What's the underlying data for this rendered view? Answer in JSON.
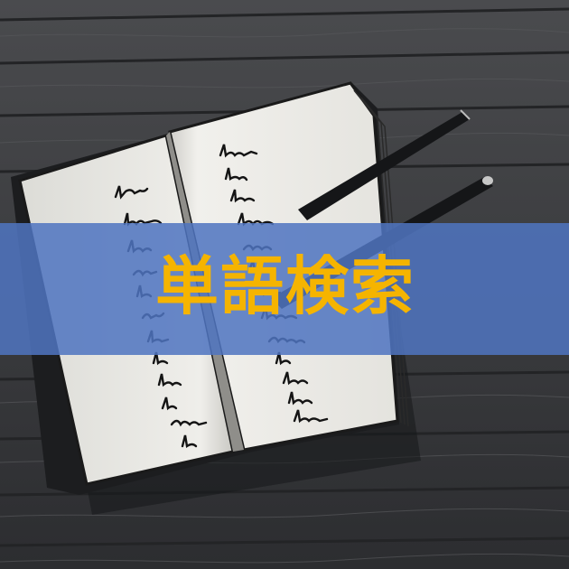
{
  "title": "単語検索",
  "colors": {
    "band": "#4f74c0",
    "title_text": "#f5b400",
    "wood": "#3a3b3d",
    "paper": "#ecebe6"
  },
  "icons": {
    "pen": "pen-icon",
    "notebook": "open-notebook-illustration"
  }
}
